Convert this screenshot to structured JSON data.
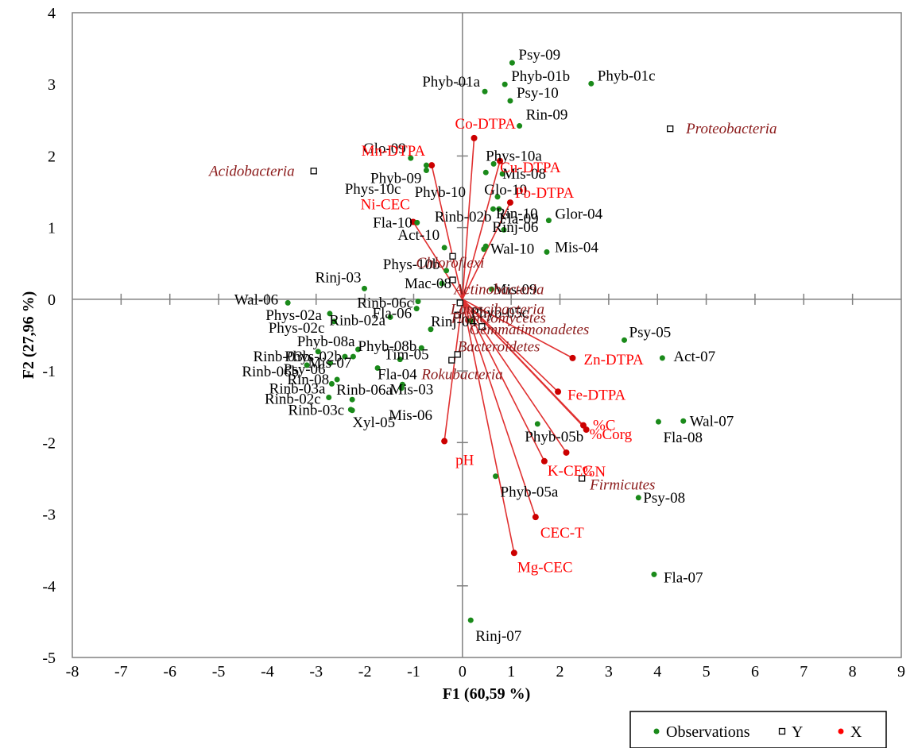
{
  "chart_data": {
    "type": "scatter",
    "xlabel": "F1 (60,59 %)",
    "ylabel": "F2 (27,96 %)",
    "xlim": [
      -8,
      9
    ],
    "ylim": [
      -5,
      4
    ],
    "xticks": [
      -8,
      -7,
      -6,
      -5,
      -4,
      -3,
      -2,
      -1,
      0,
      1,
      2,
      3,
      4,
      5,
      6,
      7,
      8,
      9
    ],
    "yticks": [
      -5,
      -4,
      -3,
      -2,
      -1,
      0,
      1,
      2,
      3,
      4
    ],
    "grid": false,
    "legend_position": "bottom-right",
    "legend": [
      {
        "name": "Observations",
        "color": "#1a8a1a",
        "marker": "dot"
      },
      {
        "name": "Y",
        "color": "#000000",
        "marker": "open-square"
      },
      {
        "name": "X",
        "color": "#ff0000",
        "marker": "dot"
      }
    ],
    "observations": [
      {
        "label": "Psy-09",
        "x": 1.02,
        "y": 3.3
      },
      {
        "label": "Phyb-01a",
        "x": 0.46,
        "y": 2.9
      },
      {
        "label": "Phyb-01b",
        "x": 0.87,
        "y": 3.0
      },
      {
        "label": "Phyb-01c",
        "x": 2.64,
        "y": 3.01
      },
      {
        "label": "Psy-10",
        "x": 0.98,
        "y": 2.77
      },
      {
        "label": "Rin-09",
        "x": 1.17,
        "y": 2.42
      },
      {
        "label": "Glo-09",
        "x": -1.06,
        "y": 1.97
      },
      {
        "label": "Phyb-09",
        "x": -0.74,
        "y": 1.8
      },
      {
        "label": "Phys-10a",
        "x": 0.64,
        "y": 1.89
      },
      {
        "label": "Mis-08",
        "x": 0.82,
        "y": 1.75
      },
      {
        "label": "Glo-10",
        "x": 0.48,
        "y": 1.77
      },
      {
        "label": "Phys-10c",
        "x": -0.74,
        "y": 1.87
      },
      {
        "label": "Phyb-10",
        "x": 0.72,
        "y": 1.43
      },
      {
        "label": "Rinb-02b",
        "x": 0.63,
        "y": 1.26
      },
      {
        "label": "Rin-10",
        "x": 0.75,
        "y": 1.26
      },
      {
        "label": "Fla-09",
        "x": 0.85,
        "y": 0.97
      },
      {
        "label": "Glor-04",
        "x": 1.77,
        "y": 1.1
      },
      {
        "label": "Fla-10",
        "x": -0.93,
        "y": 1.07
      },
      {
        "label": "Act-10",
        "x": -0.37,
        "y": 0.72
      },
      {
        "label": "Rinj-06",
        "x": 0.48,
        "y": 0.74
      },
      {
        "label": "Wal-10",
        "x": 0.44,
        "y": 0.7
      },
      {
        "label": "Mis-04",
        "x": 1.73,
        "y": 0.66
      },
      {
        "label": "Mis-09",
        "x": 0.6,
        "y": 0.14
      },
      {
        "label": "Phys-10b",
        "x": -0.33,
        "y": 0.4
      },
      {
        "label": "Rinj-03",
        "x": -2.01,
        "y": 0.15
      },
      {
        "label": "Mac-08",
        "x": -0.42,
        "y": 0.22
      },
      {
        "label": "Wal-06",
        "x": -3.58,
        "y": -0.05
      },
      {
        "label": "Rinb-06c",
        "x": -0.91,
        "y": -0.03
      },
      {
        "label": "Phys-02a",
        "x": -2.72,
        "y": -0.2
      },
      {
        "label": "Fla-06",
        "x": -0.94,
        "y": -0.13
      },
      {
        "label": "Phys-02c",
        "x": -2.63,
        "y": -0.31
      },
      {
        "label": "Rinb-02a",
        "x": -1.48,
        "y": -0.25
      },
      {
        "label": "Rinj-04",
        "x": -0.65,
        "y": -0.42
      },
      {
        "label": "Phyb-08a",
        "x": -2.14,
        "y": -0.7
      },
      {
        "label": "Phyb-08b",
        "x": -0.84,
        "y": -0.68
      },
      {
        "label": "Phyb-05c",
        "x": 0.17,
        "y": -0.3
      },
      {
        "label": "Rinb-03b",
        "x": -2.96,
        "y": -0.73
      },
      {
        "label": "Phys-02b",
        "x": -2.41,
        "y": -0.8
      },
      {
        "label": "Tim-05",
        "x": -1.28,
        "y": -0.84
      },
      {
        "label": "Rinb-06b",
        "x": -3.19,
        "y": -0.92
      },
      {
        "label": "Psy-06",
        "x": -2.71,
        "y": -0.89
      },
      {
        "label": "Mis-07",
        "x": -2.24,
        "y": -0.8
      },
      {
        "label": "Fla-04",
        "x": -1.74,
        "y": -0.96
      },
      {
        "label": "Mis-03",
        "x": -1.23,
        "y": -1.19
      },
      {
        "label": "Rinb-03a",
        "x": -2.68,
        "y": -1.18
      },
      {
        "label": "Rin-08",
        "x": -2.57,
        "y": -1.12
      },
      {
        "label": "Mis-06",
        "x": -1.25,
        "y": -1.24
      },
      {
        "label": "Rinb-02c",
        "x": -2.74,
        "y": -1.37
      },
      {
        "label": "Rinb-06a",
        "x": -2.26,
        "y": -1.4
      },
      {
        "label": "Rinb-03c",
        "x": -2.26,
        "y": -1.55
      },
      {
        "label": "Xyl-05",
        "x": -2.29,
        "y": -1.54
      },
      {
        "label": "Psy-05",
        "x": 3.32,
        "y": -0.57
      },
      {
        "label": "Act-07",
        "x": 4.1,
        "y": -0.82
      },
      {
        "label": "Wal-07",
        "x": 4.53,
        "y": -1.7
      },
      {
        "label": "Fla-08",
        "x": 4.02,
        "y": -1.71
      },
      {
        "label": "Phyb-05b",
        "x": 1.54,
        "y": -1.74
      },
      {
        "label": "Phyb-05a",
        "x": 0.68,
        "y": -2.47
      },
      {
        "label": "Psy-08",
        "x": 3.61,
        "y": -2.77
      },
      {
        "label": "Fla-07",
        "x": 3.93,
        "y": -3.84
      },
      {
        "label": "Rinj-07",
        "x": 0.17,
        "y": -4.48
      }
    ],
    "variables": [
      {
        "label": "Co-DTPA",
        "x": 0.24,
        "y": 2.25
      },
      {
        "label": "Mn-DTPA",
        "x": -0.63,
        "y": 1.87
      },
      {
        "label": "Cu-DTPA",
        "x": 0.77,
        "y": 1.93
      },
      {
        "label": "Pb-DTPA",
        "x": 0.98,
        "y": 1.35
      },
      {
        "label": "Ni-CEC",
        "x": -1.01,
        "y": 1.08
      },
      {
        "label": "Zn-DTPA",
        "x": 2.26,
        "y": -0.82
      },
      {
        "label": "Fe-DTPA",
        "x": 1.96,
        "y": -1.29
      },
      {
        "label": "%C",
        "x": 2.48,
        "y": -1.76
      },
      {
        "label": "%Corg",
        "x": 2.54,
        "y": -1.82
      },
      {
        "label": "%N",
        "x": 2.13,
        "y": -2.14
      },
      {
        "label": "K-CEC",
        "x": 1.68,
        "y": -2.26
      },
      {
        "label": "pH",
        "x": -0.37,
        "y": -1.98
      },
      {
        "label": "CEC-T",
        "x": 1.5,
        "y": -3.04
      },
      {
        "label": "Mg-CEC",
        "x": 1.06,
        "y": -3.54
      }
    ],
    "supplementary_y": [
      {
        "label": "Proteobacteria",
        "x": 4.26,
        "y": 2.38
      },
      {
        "label": "Acidobacteria",
        "x": -3.05,
        "y": 1.79
      },
      {
        "label": "Chloroflexi",
        "x": -0.2,
        "y": 0.6
      },
      {
        "label": "Actinobacteria",
        "x": -0.2,
        "y": 0.27
      },
      {
        "label": "Latescibacteria",
        "x": -0.05,
        "y": -0.05
      },
      {
        "label": "Planctomycetes",
        "x": -0.1,
        "y": -0.22
      },
      {
        "label": "Gemmatimonadetes",
        "x": 0.4,
        "y": -0.38
      },
      {
        "label": "Bacteroidetes",
        "x": -0.1,
        "y": -0.77
      },
      {
        "label": "Rokubacteria",
        "x": -0.22,
        "y": -0.85
      },
      {
        "label": "Firmicutes",
        "x": 2.45,
        "y": -2.5
      }
    ]
  },
  "colors": {
    "observation": "#1a8a1a",
    "variable_point": "#cc0000",
    "variable_line": "#e03030",
    "variable_label": "#ff0000",
    "y_label": "#8b1a1a",
    "axis": "#808080",
    "frame": "#808080"
  }
}
